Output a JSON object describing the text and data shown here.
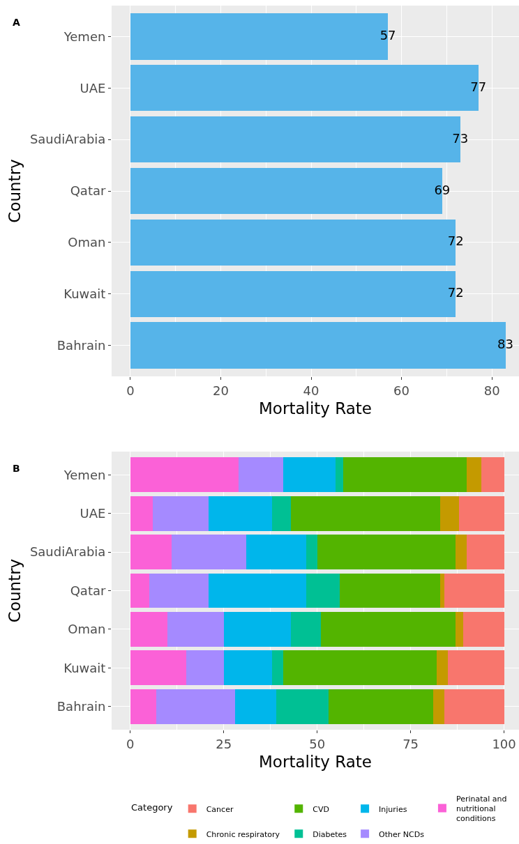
{
  "chart_data": [
    {
      "type": "bar",
      "title": "A",
      "orientation": "horizontal",
      "categories": [
        "Yemen",
        "UAE",
        "SaudiArabia",
        "Qatar",
        "Oman",
        "Kuwait",
        "Bahrain"
      ],
      "values": [
        57,
        77,
        73,
        69,
        72,
        72,
        83
      ],
      "color": "#56b4e9",
      "data_labels": true,
      "xlabel": "Mortality Rate",
      "ylabel": "Country",
      "xlim": [
        -4.15,
        86
      ],
      "xticks": [
        0,
        20,
        40,
        60,
        80
      ],
      "grid": true
    },
    {
      "type": "bar",
      "title": "B",
      "orientation": "horizontal",
      "stacked": true,
      "categories": [
        "Yemen",
        "UAE",
        "SaudiArabia",
        "Qatar",
        "Oman",
        "Kuwait",
        "Bahrain"
      ],
      "series": [
        {
          "name": "Perinatal and nutritional conditions",
          "color": "#fb61d7",
          "values": [
            29,
            6,
            11,
            5,
            10,
            15,
            7
          ]
        },
        {
          "name": "Other NCDs",
          "color": "#a58aff",
          "values": [
            12,
            15,
            20,
            16,
            15,
            10,
            21
          ]
        },
        {
          "name": "Injuries",
          "color": "#00b6eb",
          "values": [
            14,
            17,
            16,
            26,
            18,
            13,
            11
          ]
        },
        {
          "name": "Diabetes",
          "color": "#00c094",
          "values": [
            2,
            5,
            3,
            9,
            8,
            3,
            14
          ]
        },
        {
          "name": "CVD",
          "color": "#53b400",
          "values": [
            33,
            40,
            37,
            27,
            36,
            41,
            28
          ]
        },
        {
          "name": "Chronic respiratory",
          "color": "#c49a00",
          "values": [
            4,
            5,
            3,
            1,
            2,
            3,
            3
          ]
        },
        {
          "name": "Cancer",
          "color": "#f8766d",
          "values": [
            6,
            12,
            10,
            16,
            11,
            15,
            16
          ]
        }
      ],
      "xlabel": "Mortality Rate",
      "ylabel": "Country",
      "legend_title": "Category",
      "legend": "bottom",
      "xlim": [
        -5,
        104
      ],
      "xticks": [
        0,
        25,
        50,
        75,
        100
      ],
      "grid": true
    }
  ]
}
